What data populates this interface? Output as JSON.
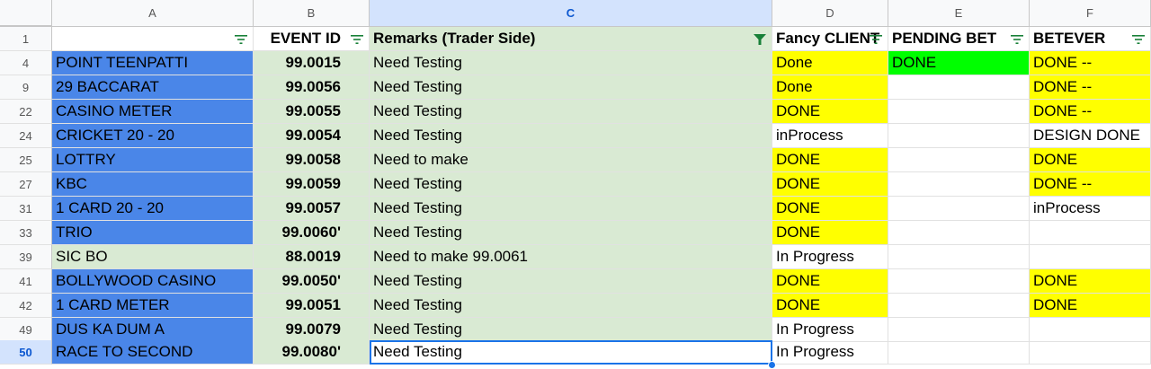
{
  "columns": [
    "A",
    "B",
    "C",
    "D",
    "E",
    "F"
  ],
  "selected_column": "C",
  "header_row": {
    "row_num": "1",
    "cells": [
      "",
      "EVENT ID",
      "Remarks (Trader Side)",
      "Fancy CLIENT",
      "PENDING BET",
      "BETEVER"
    ]
  },
  "filter_active_column": "C",
  "active_row": "50",
  "colors": {
    "blue": "#4a86e8",
    "green": "#d9ead3",
    "yellow": "#ffff00",
    "lime": "#00ff00",
    "selection": "#1a73e8"
  },
  "rows": [
    {
      "row_num": "4",
      "game": "POINT TEENPATTI",
      "event_id": "99.0015",
      "remarks": "Need Testing",
      "fancy_client": "Done",
      "pending_bet": "DONE",
      "betever": "DONE --"
    },
    {
      "row_num": "9",
      "game": "29 BACCARAT",
      "event_id": "99.0056",
      "remarks": "Need Testing",
      "fancy_client": "Done",
      "pending_bet": "",
      "betever": "DONE --"
    },
    {
      "row_num": "22",
      "game": "CASINO METER",
      "event_id": "99.0055",
      "remarks": "Need Testing",
      "fancy_client": "DONE",
      "pending_bet": "",
      "betever": "DONE --"
    },
    {
      "row_num": "24",
      "game": "CRICKET 20 - 20",
      "event_id": "99.0054",
      "remarks": "Need Testing",
      "fancy_client": "inProcess",
      "pending_bet": "",
      "betever": "DESIGN DONE"
    },
    {
      "row_num": "25",
      "game": "LOTTRY",
      "event_id": "99.0058",
      "remarks": "Need to make",
      "fancy_client": "DONE",
      "pending_bet": "",
      "betever": "DONE"
    },
    {
      "row_num": "27",
      "game": "KBC",
      "event_id": "99.0059",
      "remarks": "Need Testing",
      "fancy_client": "DONE",
      "pending_bet": "",
      "betever": "DONE --"
    },
    {
      "row_num": "31",
      "game": "1 CARD 20 - 20",
      "event_id": "99.0057",
      "remarks": "Need Testing",
      "fancy_client": "DONE",
      "pending_bet": "",
      "betever": "inProcess"
    },
    {
      "row_num": "33",
      "game": "TRIO",
      "event_id": "99.0060'",
      "remarks": "Need Testing",
      "fancy_client": "DONE",
      "pending_bet": "",
      "betever": ""
    },
    {
      "row_num": "39",
      "game": "SIC BO",
      "event_id": "88.0019",
      "remarks": "Need to make 99.0061",
      "fancy_client": "In Progress",
      "pending_bet": "",
      "betever": ""
    },
    {
      "row_num": "41",
      "game": "BOLLYWOOD CASINO",
      "event_id": "99.0050'",
      "remarks": "Need Testing",
      "fancy_client": "DONE",
      "pending_bet": "",
      "betever": "DONE"
    },
    {
      "row_num": "42",
      "game": "1 CARD METER",
      "event_id": "99.0051",
      "remarks": "Need Testing",
      "fancy_client": "DONE",
      "pending_bet": "",
      "betever": "DONE"
    },
    {
      "row_num": "49",
      "game": "DUS KA DUM A",
      "event_id": "99.0079",
      "remarks": "Need Testing",
      "fancy_client": "In Progress",
      "pending_bet": "",
      "betever": ""
    },
    {
      "row_num": "50",
      "game": "RACE TO SECOND",
      "event_id": "99.0080'",
      "remarks": "Need Testing",
      "fancy_client": "In Progress",
      "pending_bet": "",
      "betever": ""
    }
  ]
}
